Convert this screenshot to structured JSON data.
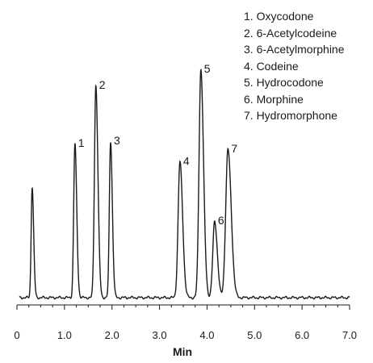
{
  "chart_data": {
    "type": "line",
    "title": "",
    "xlabel": "Min",
    "ylabel": "",
    "xlim": [
      0,
      7.0
    ],
    "ylim": [
      0,
      1.0
    ],
    "grid": false,
    "legend_position": "top-right",
    "x_ticks": [
      "0",
      "1.0",
      "2.0",
      "3.0",
      "4.0",
      "5.0",
      "6.0",
      "7.0"
    ],
    "legend": [
      "1. Oxycodone",
      "2. 6-Acetylcodeine",
      "3. 6-Acetylmorphine",
      "4. Codeine",
      "5. Hydrocodone",
      "6. Morphine",
      "7. Hydromorphone"
    ],
    "baseline": 0.0,
    "peaks": [
      {
        "label": "",
        "x": 0.32,
        "height": 0.485,
        "width": 0.025
      },
      {
        "label": "1",
        "x": 1.22,
        "height": 0.675,
        "width": 0.03
      },
      {
        "label": "2",
        "x": 1.66,
        "height": 0.93,
        "width": 0.035
      },
      {
        "label": "3",
        "x": 1.97,
        "height": 0.685,
        "width": 0.03
      },
      {
        "label": "4",
        "x": 3.43,
        "height": 0.595,
        "width": 0.045
      },
      {
        "label": "5",
        "x": 3.87,
        "height": 1.0,
        "width": 0.045
      },
      {
        "label": "6",
        "x": 4.16,
        "height": 0.335,
        "width": 0.045
      },
      {
        "label": "7",
        "x": 4.44,
        "height": 0.65,
        "width": 0.055
      }
    ]
  }
}
